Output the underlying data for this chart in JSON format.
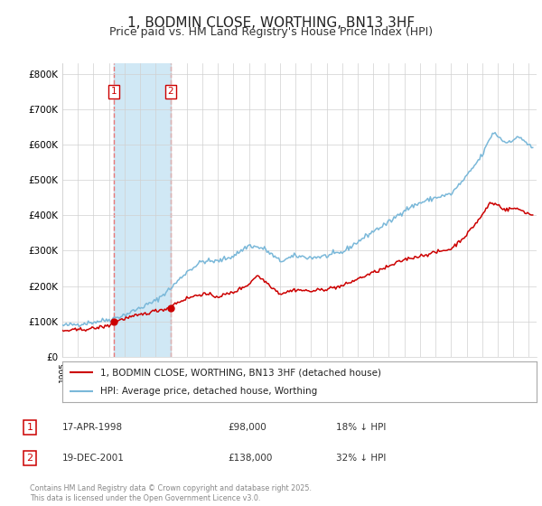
{
  "title": "1, BODMIN CLOSE, WORTHING, BN13 3HF",
  "subtitle": "Price paid vs. HM Land Registry's House Price Index (HPI)",
  "title_fontsize": 11,
  "subtitle_fontsize": 9,
  "ylabel_ticks": [
    "£0",
    "£100K",
    "£200K",
    "£300K",
    "£400K",
    "£500K",
    "£600K",
    "£700K",
    "£800K"
  ],
  "ytick_values": [
    0,
    100000,
    200000,
    300000,
    400000,
    500000,
    600000,
    700000,
    800000
  ],
  "ylim": [
    0,
    830000
  ],
  "xlim_start": 1995.0,
  "xlim_end": 2025.5,
  "hpi_color": "#7ab8d9",
  "price_color": "#cc0000",
  "vline_color": "#e87878",
  "shade_color": "#d0e8f5",
  "transaction1_x": 1998.29,
  "transaction1_y": 98000,
  "transaction2_x": 2001.96,
  "transaction2_y": 138000,
  "transaction1": {
    "date": "17-APR-1998",
    "price": 98000,
    "hpi_diff": "18% ↓ HPI",
    "label": "1"
  },
  "transaction2": {
    "date": "19-DEC-2001",
    "price": 138000,
    "hpi_diff": "32% ↓ HPI",
    "label": "2"
  },
  "legend_line1": "1, BODMIN CLOSE, WORTHING, BN13 3HF (detached house)",
  "legend_line2": "HPI: Average price, detached house, Worthing",
  "footnote": "Contains HM Land Registry data © Crown copyright and database right 2025.\nThis data is licensed under the Open Government Licence v3.0.",
  "background_color": "#ffffff",
  "grid_color": "#d0d0d0",
  "box_border_color": "#aaaaaa"
}
